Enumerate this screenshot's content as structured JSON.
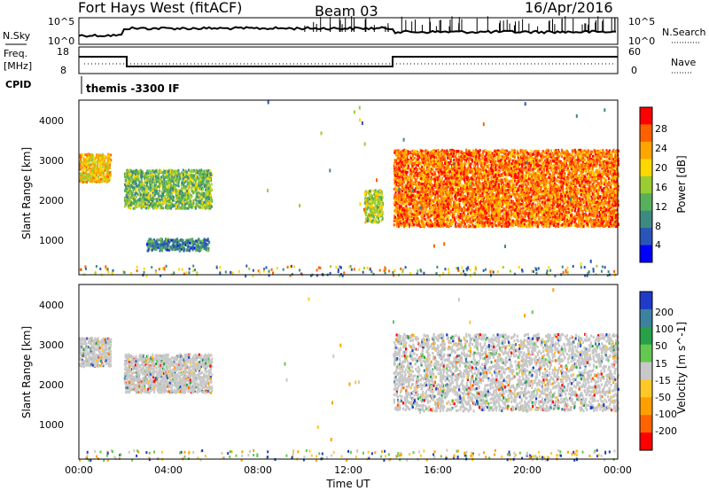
{
  "header": {
    "station": "Fort Hays West (fitACF)",
    "beam": "Beam 03",
    "date": "16/Apr/2016"
  },
  "noise_panel": {
    "left_label": "N.Sky",
    "left_ticks": [
      "10^5",
      "10^0"
    ],
    "right_ticks": [
      "10^5",
      "10^0"
    ],
    "right_label": "N.Search"
  },
  "freq_panel": {
    "left_label_line1": "Freq.",
    "left_label_line2": "[MHz]",
    "left_ticks": [
      "18",
      "8"
    ],
    "right_ticks": [
      "60",
      "0"
    ],
    "right_label": "Nave"
  },
  "cpid_panel": {
    "label": "CPID",
    "mode_text": "themis -3300 IF"
  },
  "chart_data": [
    {
      "type": "scatter",
      "title": "",
      "ylabel": "Slant Range [km]",
      "xlabel": "",
      "yticks": [
        "1000",
        "2000",
        "3000",
        "4000"
      ],
      "ylim": [
        180,
        4500
      ],
      "colorbar": {
        "label": "Power [dB]",
        "ticks": [
          "4",
          "8",
          "12",
          "16",
          "20",
          "24",
          "28"
        ],
        "colors": [
          "#0000ff",
          "#2a55b8",
          "#3d8a82",
          "#58b05a",
          "#9acd32",
          "#ffd700",
          "#ffa500",
          "#ff6000",
          "#ff0000"
        ]
      },
      "echo_regions": [
        {
          "t0": 0.0,
          "t1": 1.4,
          "r0": 2500,
          "r1": 3200,
          "value": 20
        },
        {
          "t0": 2.0,
          "t1": 5.9,
          "r0": 1850,
          "r1": 2800,
          "value": 14
        },
        {
          "t0": 3.0,
          "t1": 5.8,
          "r0": 800,
          "r1": 1100,
          "value": 10
        },
        {
          "t0": 12.7,
          "t1": 13.5,
          "r0": 1500,
          "r1": 2300,
          "value": 16
        },
        {
          "t0": 14.0,
          "t1": 24.0,
          "r0": 1400,
          "r1": 3300,
          "value": 24
        }
      ]
    },
    {
      "type": "scatter",
      "title": "",
      "ylabel": "Slant Range [km]",
      "xlabel": "Time UT",
      "yticks": [
        "1000",
        "2000",
        "3000",
        "4000"
      ],
      "ylim": [
        180,
        4500
      ],
      "xticks": [
        "00:00",
        "04:00",
        "08:00",
        "12:00",
        "16:00",
        "20:00",
        "00:00"
      ],
      "colorbar": {
        "label": "Velocity [m s^-1]",
        "ticks": [
          "200",
          "100",
          "50",
          "15",
          "-15",
          "-50",
          "-100",
          "-200"
        ],
        "colors": [
          "#1e3cc8",
          "#3c82a0",
          "#28a048",
          "#64c850",
          "#c8c8c8",
          "#ffc828",
          "#ffa000",
          "#ff6400",
          "#ff0000"
        ]
      },
      "echo_regions": [
        {
          "t0": 0.0,
          "t1": 1.4,
          "r0": 2500,
          "r1": 3200,
          "value": 0
        },
        {
          "t0": 2.0,
          "t1": 5.9,
          "r0": 1850,
          "r1": 2800,
          "value": 0
        },
        {
          "t0": 14.0,
          "t1": 24.0,
          "r0": 1400,
          "r1": 3300,
          "value": 0
        }
      ]
    }
  ]
}
